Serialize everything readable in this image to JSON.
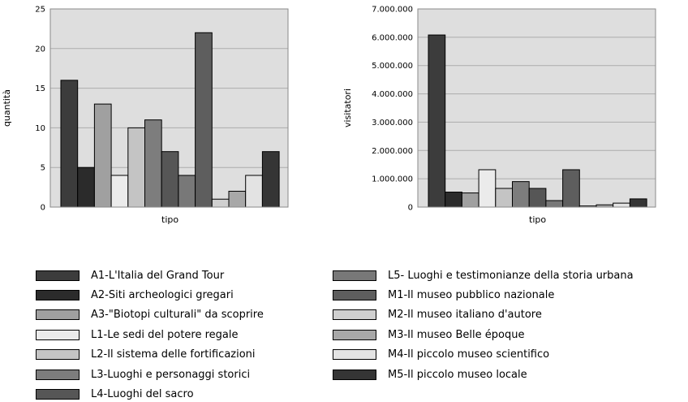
{
  "chart_data": [
    {
      "type": "bar",
      "xlabel": "tipo",
      "ylabel": "quantità",
      "ylim": [
        0,
        25
      ],
      "yticks": [
        0,
        5,
        10,
        15,
        20,
        25
      ],
      "ytick_labels": [
        "0",
        "5",
        "10",
        "15",
        "20",
        "25"
      ],
      "grid": true,
      "series": [
        {
          "name": "A1-L'Italia del Grand Tour",
          "values": [
            16
          ]
        },
        {
          "name": "A2-Siti archeologici gregari",
          "values": [
            5
          ]
        },
        {
          "name": "A3-\"Biotopi culturali\" da scoprire",
          "values": [
            13
          ]
        },
        {
          "name": "L1-Le sedi del potere regale",
          "values": [
            4
          ]
        },
        {
          "name": "L2-Il sistema delle fortificazioni",
          "values": [
            10
          ]
        },
        {
          "name": "L3-Luoghi e personaggi storici",
          "values": [
            11
          ]
        },
        {
          "name": "L4-Luoghi del sacro",
          "values": [
            7
          ]
        },
        {
          "name": "L5- Luoghi e testimonianze della storia urbana",
          "values": [
            4
          ]
        },
        {
          "name": "M1-Il museo pubblico nazionale",
          "values": [
            22
          ]
        },
        {
          "name": "M2-Il museo italiano d'autore",
          "values": [
            1
          ]
        },
        {
          "name": "M3-Il museo Belle époque",
          "values": [
            2
          ]
        },
        {
          "name": "M4-Il piccolo museo scientifico",
          "values": [
            4
          ]
        },
        {
          "name": "M5-Il piccolo museo locale",
          "values": [
            7
          ]
        }
      ]
    },
    {
      "type": "bar",
      "xlabel": "tipo",
      "ylabel": "visitatori",
      "ylim": [
        0,
        7000000
      ],
      "yticks": [
        0,
        1000000,
        2000000,
        3000000,
        4000000,
        5000000,
        6000000,
        7000000
      ],
      "ytick_labels": [
        "0",
        "1.000.000",
        "2.000.000",
        "3.000.000",
        "4.000.000",
        "5.000.000",
        "6.000.000",
        "7.000.000"
      ],
      "grid": true,
      "series": [
        {
          "name": "A1-L'Italia del Grand Tour",
          "values": [
            6080000
          ]
        },
        {
          "name": "A2-Siti archeologici gregari",
          "values": [
            530000
          ]
        },
        {
          "name": "A3-\"Biotopi culturali\" da scoprire",
          "values": [
            500000
          ]
        },
        {
          "name": "L1-Le sedi del potere regale",
          "values": [
            1320000
          ]
        },
        {
          "name": "L2-Il sistema delle fortificazioni",
          "values": [
            660000
          ]
        },
        {
          "name": "L3-Luoghi e personaggi storici",
          "values": [
            900000
          ]
        },
        {
          "name": "L4-Luoghi del sacro",
          "values": [
            660000
          ]
        },
        {
          "name": "L5- Luoghi e testimonianze della storia urbana",
          "values": [
            230000
          ]
        },
        {
          "name": "M1-Il museo pubblico nazionale",
          "values": [
            1320000
          ]
        },
        {
          "name": "M2-Il museo italiano d'autore",
          "values": [
            40000
          ]
        },
        {
          "name": "M3-Il museo Belle époque",
          "values": [
            80000
          ]
        },
        {
          "name": "M4-Il piccolo museo scientifico",
          "values": [
            140000
          ]
        },
        {
          "name": "M5-Il piccolo museo locale",
          "values": [
            290000
          ]
        }
      ]
    }
  ],
  "legend": {
    "placement": "bottom",
    "items": [
      {
        "label": "A1-L'Italia del Grand Tour",
        "color": "#3c3c3c"
      },
      {
        "label": "A2-Siti archeologici gregari",
        "color": "#2b2b2b"
      },
      {
        "label": "A3-\"Biotopi culturali\" da scoprire",
        "color": "#a0a0a0"
      },
      {
        "label": "L1-Le sedi del potere regale",
        "color": "#ebebeb"
      },
      {
        "label": "L2-Il sistema delle fortificazioni",
        "color": "#c4c4c4"
      },
      {
        "label": "L3-Luoghi e personaggi storici",
        "color": "#7d7d7d"
      },
      {
        "label": "L4-Luoghi del sacro",
        "color": "#565656"
      },
      {
        "label": "L5- Luoghi e testimonianze della storia urbana",
        "color": "#787878"
      },
      {
        "label": "M1-Il museo pubblico nazionale",
        "color": "#5e5e5e"
      },
      {
        "label": "M2-Il museo italiano d'autore",
        "color": "#cfcfcf"
      },
      {
        "label": "M3-Il museo Belle époque",
        "color": "#a8a8a8"
      },
      {
        "label": "M4-Il piccolo museo scientifico",
        "color": "#e3e3e3"
      },
      {
        "label": "M5-Il piccolo museo locale",
        "color": "#353535"
      }
    ]
  },
  "style": {
    "plot_background": "#dedede",
    "gridline_color": "#ababab",
    "frame_color": "#8a8a8a"
  }
}
